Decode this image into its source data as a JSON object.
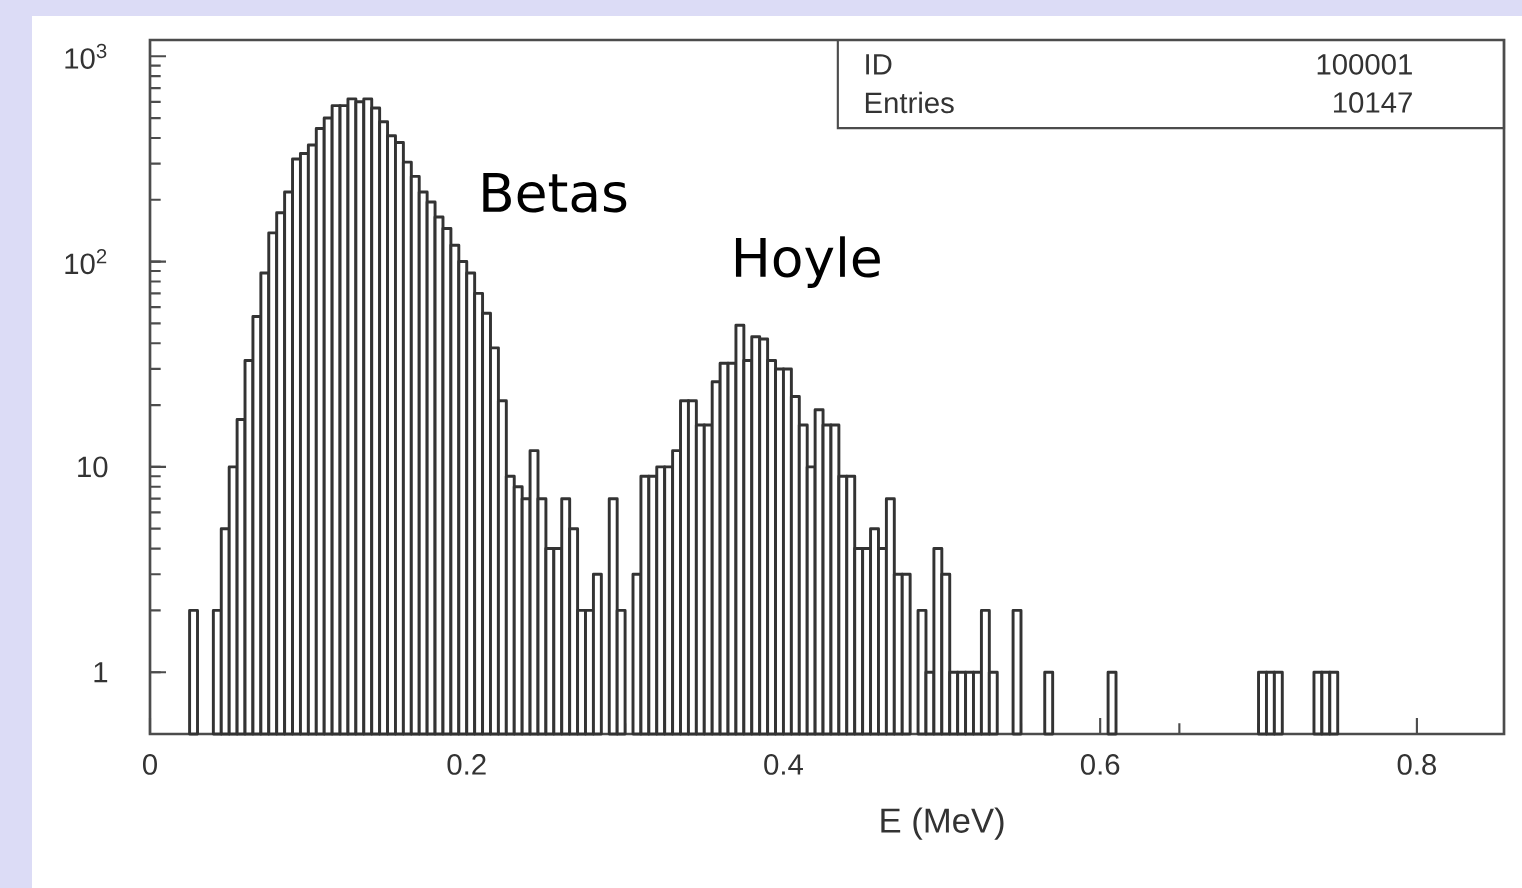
{
  "chart_data": {
    "type": "histogram",
    "xlabel": "E (MeV)",
    "bins": [
      0,
      0.005,
      0.01,
      0.015,
      0.02,
      0.025,
      0.03,
      0.035,
      0.04,
      0.045,
      0.05,
      0.055,
      0.06,
      0.065,
      0.07,
      0.075,
      0.08,
      0.085,
      0.09,
      0.095,
      0.1,
      0.105,
      0.11,
      0.115,
      0.12,
      0.125,
      0.13,
      0.135,
      0.14,
      0.145,
      0.15,
      0.155,
      0.16,
      0.165,
      0.17,
      0.175,
      0.18,
      0.185,
      0.19,
      0.195,
      0.2,
      0.205,
      0.21,
      0.215,
      0.22,
      0.225,
      0.23,
      0.235,
      0.24,
      0.245,
      0.25,
      0.255,
      0.26,
      0.265,
      0.27,
      0.275,
      0.28,
      0.285,
      0.29,
      0.295,
      0.3,
      0.305,
      0.31,
      0.315,
      0.32,
      0.325,
      0.33,
      0.335,
      0.34,
      0.345,
      0.35,
      0.355,
      0.36,
      0.365,
      0.37,
      0.375,
      0.38,
      0.385,
      0.39,
      0.395,
      0.4,
      0.405,
      0.41,
      0.415,
      0.42,
      0.425,
      0.43,
      0.435,
      0.44,
      0.445,
      0.45,
      0.455,
      0.46,
      0.465,
      0.47,
      0.475,
      0.48,
      0.485,
      0.49,
      0.495,
      0.5,
      0.505,
      0.51,
      0.515,
      0.52,
      0.525,
      0.53,
      0.535,
      0.54,
      0.545,
      0.55,
      0.555,
      0.56,
      0.565,
      0.57,
      0.575,
      0.58,
      0.585,
      0.59,
      0.595,
      0.6,
      0.605,
      0.61,
      0.615,
      0.62,
      0.625,
      0.63,
      0.635,
      0.64,
      0.645,
      0.65,
      0.655,
      0.66,
      0.665,
      0.67,
      0.675,
      0.68,
      0.685,
      0.69,
      0.695,
      0.7,
      0.705,
      0.71,
      0.715,
      0.72,
      0.725,
      0.73,
      0.735,
      0.74,
      0.745,
      0.75,
      0.755,
      0.76,
      0.765,
      0.77,
      0.775,
      0.78,
      0.785,
      0.79,
      0.795,
      0.8,
      0.805,
      0.81,
      0.815,
      0.82,
      0.825,
      0.83,
      0.835,
      0.84,
      0.845,
      0.85
    ],
    "values": [
      null,
      null,
      null,
      null,
      null,
      2,
      null,
      null,
      2,
      5,
      10,
      17,
      33,
      54,
      88,
      138,
      173,
      218,
      316,
      336,
      370,
      445,
      500,
      575,
      575,
      620,
      600,
      620,
      560,
      480,
      410,
      380,
      305,
      260,
      218,
      195,
      165,
      145,
      120,
      100,
      88,
      70,
      56,
      38,
      21,
      9,
      8,
      7,
      12,
      7,
      4,
      4,
      7,
      5,
      2,
      2,
      3,
      null,
      7,
      2,
      null,
      3,
      9,
      9,
      10,
      10,
      12,
      21,
      21,
      16,
      16,
      26,
      32,
      32,
      49,
      33,
      43,
      42,
      33,
      30,
      30,
      22,
      16,
      10,
      19,
      16,
      16,
      9,
      9,
      4,
      4,
      5,
      4,
      7,
      3,
      3,
      null,
      2,
      1,
      4,
      3,
      1,
      1,
      1,
      1,
      2,
      1,
      null,
      null,
      2,
      null,
      null,
      null,
      1,
      null,
      null,
      null,
      null,
      null,
      null,
      null,
      1,
      null,
      null,
      null,
      null,
      null,
      null,
      null,
      null,
      null,
      null,
      null,
      null,
      null,
      null,
      null,
      null,
      null,
      null,
      1,
      1,
      1,
      null,
      null,
      null,
      null,
      1,
      1,
      1,
      null,
      null,
      null,
      null,
      null,
      null,
      null,
      null,
      null,
      null,
      null,
      null,
      null,
      null,
      null,
      null,
      null,
      null,
      null,
      null
    ],
    "color": "#333333",
    "log": "y",
    "xlim": [
      0,
      0.855
    ],
    "ylim": [
      0.5,
      1200
    ],
    "xticks": [
      0,
      0.2,
      0.4,
      0.6,
      0.8
    ],
    "yticks": [
      1,
      10,
      {
        "value": 100,
        "label": "10$^{2}$"
      },
      {
        "value": 1000,
        "label": "10$^{3}$"
      }
    ],
    "annotations": [
      "Betas",
      "Hoyle",
      "ID",
      "100001",
      "Entries",
      "10147"
    ]
  }
}
